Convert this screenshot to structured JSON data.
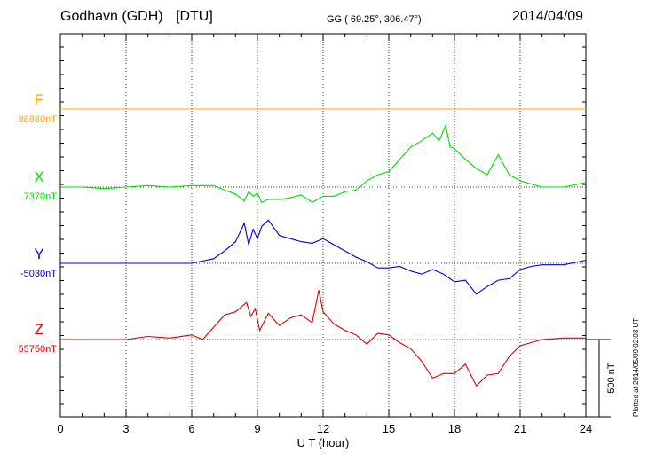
{
  "header": {
    "station": "Godhavn (GDH)",
    "institute": "[DTU]",
    "coords": "GG ( 69.25°, 306.47°)",
    "date": "2014/04/09"
  },
  "footer": {
    "plotted": "Plotted at 2014/05/09 02:03 UT"
  },
  "colors": {
    "F": "#ffa500",
    "X": "#00dd00",
    "Y": "#0000dd",
    "Z": "#dd0000"
  },
  "chart_data": {
    "type": "line",
    "title": "Godhavn (GDH) [DTU] 2014/04/09",
    "xlabel": "U T (hour)",
    "xlim": [
      0,
      24
    ],
    "xticks": [
      "0",
      "3",
      "6",
      "9",
      "12",
      "15",
      "18",
      "21",
      "24"
    ],
    "grid": true,
    "scale_bar": {
      "label": "500 nT",
      "value_nT": 500
    },
    "series": [
      {
        "name": "F",
        "baseline_label": "88880nT",
        "baseline_nT": 88880,
        "x": [
          0,
          24
        ],
        "y": [
          0,
          0
        ]
      },
      {
        "name": "X",
        "baseline_label": "7370nT",
        "baseline_nT": 7370,
        "x": [
          0,
          1,
          2,
          3,
          4,
          5,
          6,
          7,
          7.5,
          8,
          8.4,
          8.6,
          8.8,
          9,
          9.2,
          9.5,
          10,
          10.5,
          11,
          11.5,
          12,
          12.5,
          13,
          13.5,
          14,
          14.5,
          15,
          15.5,
          16,
          16.5,
          17,
          17.3,
          17.6,
          17.8,
          18,
          18.5,
          19,
          19.5,
          20,
          20.5,
          21,
          21.5,
          22,
          23,
          24
        ],
        "y": [
          0,
          0,
          -10,
          0,
          10,
          0,
          10,
          10,
          -20,
          -45,
          -90,
          -30,
          -60,
          -40,
          -100,
          -80,
          -80,
          -70,
          -50,
          -100,
          -60,
          -60,
          -30,
          -20,
          40,
          80,
          100,
          180,
          260,
          300,
          350,
          300,
          400,
          260,
          250,
          180,
          120,
          80,
          210,
          80,
          40,
          20,
          0,
          0,
          30
        ]
      },
      {
        "name": "Y",
        "baseline_label": "-5030nT",
        "baseline_nT": -5030,
        "x": [
          0,
          1,
          2,
          3,
          4,
          5,
          6,
          7,
          7.5,
          8,
          8.4,
          8.6,
          8.8,
          9,
          9.2,
          9.5,
          10,
          10.5,
          11,
          11.5,
          12,
          12.5,
          13,
          13.5,
          14,
          14.5,
          15,
          15.5,
          16,
          16.5,
          17,
          17.5,
          18,
          18.5,
          19,
          19.5,
          20,
          20.5,
          21,
          21.5,
          22,
          23,
          24
        ],
        "y": [
          0,
          0,
          0,
          0,
          0,
          0,
          0,
          30,
          80,
          140,
          260,
          120,
          220,
          160,
          240,
          280,
          180,
          160,
          140,
          130,
          160,
          120,
          80,
          40,
          10,
          -30,
          -30,
          -20,
          -50,
          -70,
          -40,
          -70,
          -120,
          -110,
          -200,
          -150,
          -110,
          -100,
          -40,
          -20,
          -10,
          -10,
          20
        ]
      },
      {
        "name": "Z",
        "baseline_label": "55750nT",
        "baseline_nT": 55750,
        "x": [
          0,
          1,
          2,
          3,
          4,
          5,
          6,
          6.5,
          7,
          7.5,
          8,
          8.5,
          8.7,
          8.9,
          9.1,
          9.5,
          10,
          10.5,
          11,
          11.5,
          11.8,
          12,
          12.5,
          13,
          13.5,
          14,
          14.5,
          15,
          15.5,
          16,
          16.5,
          17,
          17.5,
          18,
          18.5,
          19,
          19.5,
          20,
          20.5,
          21,
          21.5,
          22,
          23,
          24
        ],
        "y": [
          0,
          0,
          0,
          0,
          20,
          10,
          30,
          0,
          80,
          160,
          180,
          240,
          150,
          200,
          60,
          170,
          90,
          140,
          160,
          110,
          320,
          180,
          100,
          60,
          30,
          -30,
          40,
          30,
          -20,
          -60,
          -140,
          -250,
          -220,
          -220,
          -160,
          -300,
          -230,
          -220,
          -110,
          -40,
          -20,
          0,
          10,
          10
        ]
      }
    ]
  }
}
